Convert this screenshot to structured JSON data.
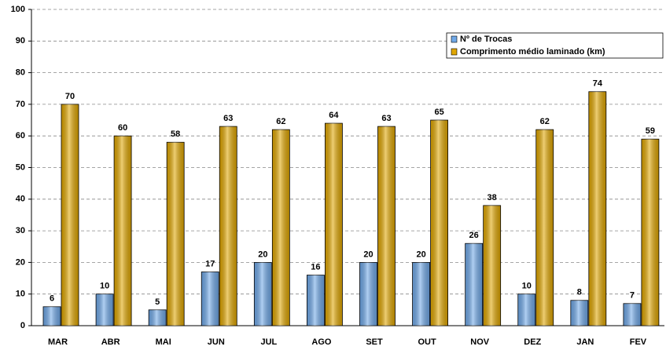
{
  "chart_data": {
    "type": "bar",
    "categories": [
      "MAR",
      "ABR",
      "MAI",
      "JUN",
      "JUL",
      "AGO",
      "SET",
      "OUT",
      "NOV",
      "DEZ",
      "JAN",
      "FEV"
    ],
    "series": [
      {
        "name": "Nº de Trocas",
        "color": "#6fa8e8",
        "values": [
          6,
          10,
          5,
          17,
          20,
          16,
          20,
          20,
          26,
          10,
          8,
          7
        ]
      },
      {
        "name": "Comprimento médio laminado (km)",
        "color": "#e0a600",
        "values": [
          70,
          60,
          58,
          63,
          62,
          64,
          63,
          65,
          38,
          62,
          74,
          59
        ]
      }
    ],
    "ylim": [
      0,
      100
    ],
    "yticks": [
      0,
      10,
      20,
      30,
      40,
      50,
      60,
      70,
      80,
      90,
      100
    ],
    "grid": true,
    "legend": "top-right"
  }
}
